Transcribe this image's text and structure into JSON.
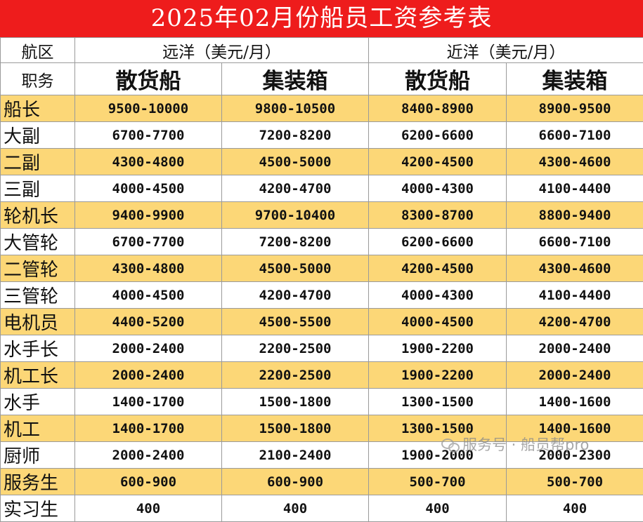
{
  "title": "2025年02月份船员工资参考表",
  "header": {
    "route_label": "航区",
    "role_label": "职务",
    "ocean": "远洋（美元/月）",
    "coastal": "近洋（美元/月）",
    "bulk": "散货船",
    "container": "集装箱"
  },
  "rows": [
    {
      "role": "船长",
      "values": [
        "9500-10000",
        "9800-10500",
        "8400-8900",
        "8900-9500"
      ]
    },
    {
      "role": "大副",
      "values": [
        "6700-7700",
        "7200-8200",
        "6200-6600",
        "6600-7100"
      ]
    },
    {
      "role": "二副",
      "values": [
        "4300-4800",
        "4500-5000",
        "4200-4500",
        "4300-4600"
      ]
    },
    {
      "role": "三副",
      "values": [
        "4000-4500",
        "4200-4700",
        "4000-4300",
        "4100-4400"
      ]
    },
    {
      "role": "轮机长",
      "values": [
        "9400-9900",
        "9700-10400",
        "8300-8700",
        "8800-9400"
      ]
    },
    {
      "role": "大管轮",
      "values": [
        "6700-7700",
        "7200-8200",
        "6200-6600",
        "6600-7100"
      ]
    },
    {
      "role": "二管轮",
      "values": [
        "4300-4800",
        "4500-5000",
        "4200-4500",
        "4300-4600"
      ]
    },
    {
      "role": "三管轮",
      "values": [
        "4000-4500",
        "4200-4700",
        "4000-4300",
        "4100-4400"
      ]
    },
    {
      "role": "电机员",
      "values": [
        "4400-5200",
        "4500-5500",
        "4000-4500",
        "4200-4700"
      ]
    },
    {
      "role": "水手长",
      "values": [
        "2000-2400",
        "2200-2500",
        "1900-2200",
        "2000-2400"
      ]
    },
    {
      "role": "机工长",
      "values": [
        "2000-2400",
        "2200-2500",
        "1900-2200",
        "2000-2400"
      ]
    },
    {
      "role": "水手",
      "values": [
        "1400-1700",
        "1500-1800",
        "1300-1500",
        "1400-1600"
      ]
    },
    {
      "role": "机工",
      "values": [
        "1400-1700",
        "1500-1800",
        "1300-1500",
        "1400-1600"
      ]
    },
    {
      "role": "厨师",
      "values": [
        "2000-2400",
        "2100-2400",
        "1900-2000",
        "2000-2300"
      ]
    },
    {
      "role": "服务生",
      "values": [
        "600-900",
        "600-900",
        "500-700",
        "500-700"
      ]
    },
    {
      "role": "实习生",
      "values": [
        "400",
        "400",
        "400",
        "400"
      ]
    }
  ],
  "watermark": {
    "text": "服务号 · 船员帮pro",
    "icon": "wechat-icon"
  },
  "colors": {
    "title_bg": "#ee1c1c",
    "stripe": "#fcd777",
    "grid": "#9a9a9a"
  }
}
